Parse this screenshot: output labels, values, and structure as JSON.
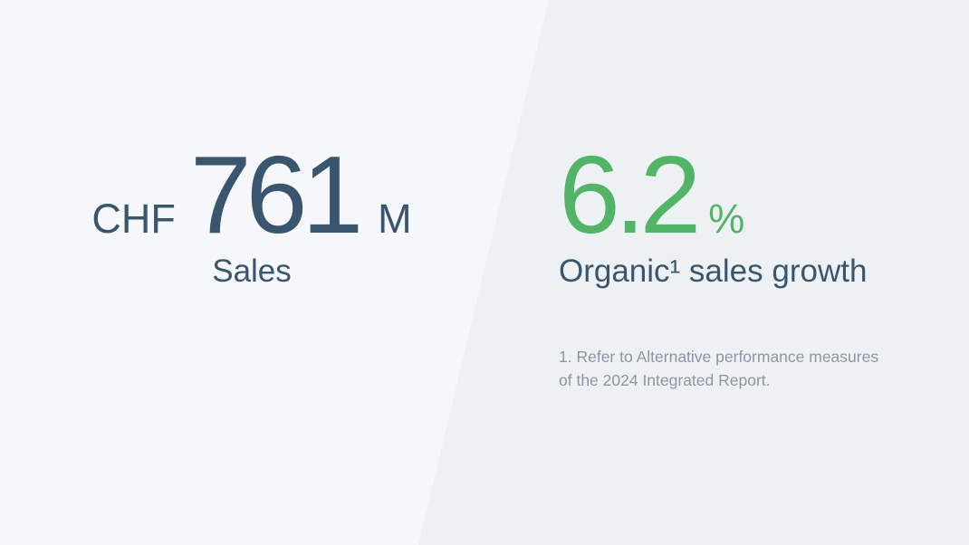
{
  "theme": {
    "background_left": "#f6f7fb",
    "background_right": "#edf1f4",
    "accent_navy": "#3a566e",
    "accent_green": "#52b466",
    "footnote_gray": "#8d97a2"
  },
  "kpi_sales": {
    "currency": "CHF",
    "value": "761",
    "unit": "M",
    "label": "Sales"
  },
  "kpi_growth": {
    "value": "6.2",
    "unit": "%",
    "label": "Organic¹ sales growth"
  },
  "footnote": {
    "line1": "1. Refer to Alternative performance measures",
    "line2": "of the 2024 Integrated Report."
  }
}
